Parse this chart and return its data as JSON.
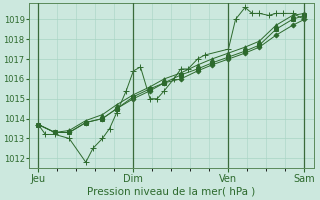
{
  "xlabel": "Pression niveau de la mer( hPa )",
  "background_color": "#cce8de",
  "grid_color": "#a8d4c4",
  "line_color": "#2d6a2d",
  "vline_color": "#3a6a3a",
  "ylim": [
    1011.5,
    1019.8
  ],
  "yticks": [
    1012,
    1013,
    1014,
    1015,
    1016,
    1017,
    1018,
    1019
  ],
  "xlim": [
    -4,
    116
  ],
  "day_labels": [
    "Jeu",
    "Dim",
    "Ven",
    "Sam"
  ],
  "day_positions": [
    0,
    40,
    80,
    112
  ],
  "series": [
    {
      "x": [
        0,
        3,
        7,
        13,
        20,
        23,
        27,
        30,
        33,
        37,
        40,
        43,
        47,
        50,
        53,
        57,
        60,
        63,
        67,
        70,
        80,
        83,
        87,
        90,
        93,
        97,
        100,
        103,
        107,
        112
      ],
      "y": [
        1013.7,
        1013.2,
        1013.2,
        1013.0,
        1011.8,
        1012.5,
        1013.0,
        1013.5,
        1014.3,
        1015.4,
        1016.4,
        1016.6,
        1015.0,
        1015.0,
        1015.4,
        1016.0,
        1016.5,
        1016.5,
        1017.0,
        1017.2,
        1017.5,
        1019.0,
        1019.6,
        1019.3,
        1019.3,
        1019.2,
        1019.3,
        1019.3,
        1019.3,
        1019.0
      ],
      "marker": "+",
      "ms": 4
    },
    {
      "x": [
        0,
        7,
        13,
        20,
        27,
        33,
        40,
        47,
        53,
        60,
        67,
        73,
        80,
        87,
        93,
        100,
        107,
        112
      ],
      "y": [
        1013.7,
        1013.3,
        1013.3,
        1013.8,
        1014.0,
        1014.5,
        1015.0,
        1015.4,
        1015.8,
        1016.0,
        1016.4,
        1016.7,
        1017.0,
        1017.3,
        1017.6,
        1018.2,
        1018.7,
        1019.0
      ],
      "marker": "D",
      "ms": 2.5
    },
    {
      "x": [
        0,
        7,
        13,
        20,
        27,
        33,
        40,
        47,
        53,
        60,
        67,
        73,
        80,
        87,
        93,
        100,
        107,
        112
      ],
      "y": [
        1013.7,
        1013.3,
        1013.3,
        1013.8,
        1014.0,
        1014.5,
        1015.1,
        1015.5,
        1015.8,
        1016.2,
        1016.5,
        1016.8,
        1017.1,
        1017.4,
        1017.7,
        1018.5,
        1019.0,
        1019.2
      ],
      "marker": "s",
      "ms": 2.5
    },
    {
      "x": [
        0,
        7,
        13,
        20,
        27,
        33,
        40,
        47,
        53,
        60,
        67,
        73,
        80,
        87,
        93,
        100,
        107,
        112
      ],
      "y": [
        1013.7,
        1013.3,
        1013.4,
        1013.9,
        1014.2,
        1014.7,
        1015.2,
        1015.6,
        1016.0,
        1016.3,
        1016.7,
        1017.0,
        1017.3,
        1017.6,
        1017.9,
        1018.7,
        1019.2,
        1019.3
      ],
      "marker": "^",
      "ms": 2.5
    }
  ]
}
